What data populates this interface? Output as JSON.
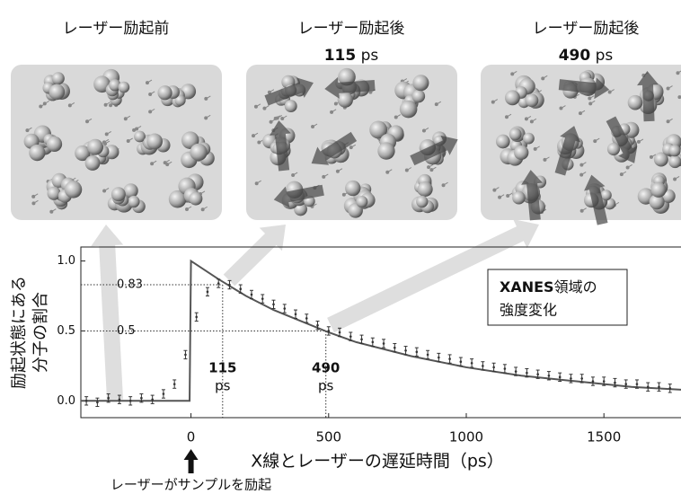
{
  "panels": [
    {
      "title": "レーザー励起前"
    },
    {
      "title": "レーザー励起後",
      "time": "115",
      "unit": "ps"
    },
    {
      "title": "レーザー励起後",
      "time": "490",
      "unit": "ps"
    }
  ],
  "chart_data": {
    "type": "line",
    "x_label": "X線とレーザーの遅延時間（ps）",
    "y_label": [
      "励起状態にある",
      "分子の割合"
    ],
    "xlim": [
      -400,
      1780
    ],
    "ylim": [
      -0.12,
      1.1
    ],
    "xticks": [
      0,
      500,
      1000,
      1500
    ],
    "yticks": [
      {
        "value": 0,
        "label": "0.0"
      },
      0.5,
      {
        "value": 1,
        "label": "1.0"
      }
    ],
    "series": [
      {
        "color": "#555555",
        "style": "line",
        "x": [
          -400,
          -5,
          0,
          100,
          200,
          300,
          400,
          500,
          600,
          800,
          1000,
          1200,
          1400,
          1600,
          1780
        ],
        "values": [
          0,
          0,
          1.0,
          0.87,
          0.75,
          0.65,
          0.57,
          0.49,
          0.42,
          0.32,
          0.24,
          0.18,
          0.14,
          0.1,
          0.08
        ]
      },
      {
        "color": "#333333",
        "style": "errorbar",
        "x": [
          -380,
          -340,
          -300,
          -260,
          -220,
          -180,
          -140,
          -100,
          -60,
          -20,
          20,
          60,
          100,
          140,
          180,
          220,
          260,
          300,
          340,
          380,
          420,
          460,
          500,
          540,
          580,
          620,
          660,
          700,
          740,
          780,
          820,
          860,
          900,
          940,
          980,
          1020,
          1060,
          1100,
          1140,
          1180,
          1220,
          1260,
          1300,
          1340,
          1380,
          1420,
          1460,
          1500,
          1540,
          1580,
          1620,
          1660,
          1700,
          1740
        ],
        "values": [
          0.0,
          -0.01,
          0.02,
          0.01,
          0.0,
          0.02,
          0.01,
          0.05,
          0.12,
          0.33,
          0.6,
          0.78,
          0.84,
          0.83,
          0.8,
          0.76,
          0.73,
          0.69,
          0.66,
          0.62,
          0.59,
          0.54,
          0.5,
          0.49,
          0.46,
          0.44,
          0.42,
          0.41,
          0.38,
          0.36,
          0.35,
          0.33,
          0.31,
          0.3,
          0.28,
          0.27,
          0.25,
          0.24,
          0.23,
          0.21,
          0.2,
          0.19,
          0.18,
          0.17,
          0.16,
          0.16,
          0.14,
          0.14,
          0.13,
          0.12,
          0.12,
          0.1,
          0.1,
          0.09
        ],
        "errors": [
          0.03,
          0.03,
          0.03,
          0.03,
          0.03,
          0.03,
          0.03,
          0.03,
          0.03,
          0.03,
          0.03,
          0.03,
          0.03,
          0.03,
          0.03,
          0.03,
          0.03,
          0.03,
          0.03,
          0.03,
          0.03,
          0.03,
          0.03,
          0.03,
          0.03,
          0.03,
          0.03,
          0.03,
          0.03,
          0.03,
          0.03,
          0.03,
          0.03,
          0.03,
          0.03,
          0.03,
          0.03,
          0.03,
          0.03,
          0.03,
          0.03,
          0.03,
          0.03,
          0.03,
          0.03,
          0.03,
          0.03,
          0.03,
          0.03,
          0.03,
          0.03,
          0.03,
          0.03,
          0.03
        ]
      }
    ],
    "hlines": [
      {
        "value": 0.83,
        "label": "0.83"
      },
      {
        "value": 0.5,
        "label": "0.5"
      }
    ],
    "vlines": [
      {
        "value": 115,
        "label": "115",
        "unit": "ps"
      },
      {
        "value": 490,
        "label": "490",
        "unit": "ps"
      }
    ],
    "box": {
      "bold": "XANES",
      "text": "領域の",
      "line2": "強度変化"
    },
    "laser_note": "レーザーがサンプルを励起"
  }
}
